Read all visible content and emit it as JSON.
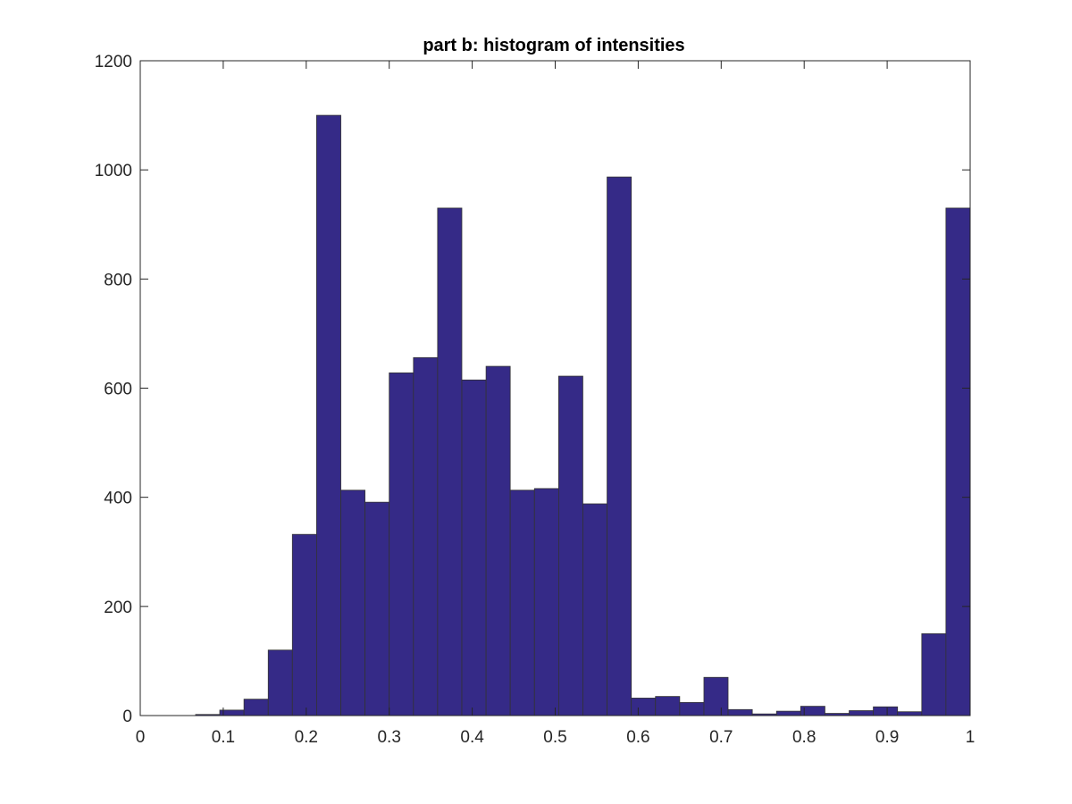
{
  "chart_data": {
    "type": "bar",
    "title": "part b: histogram of intensities",
    "xlabel": "",
    "ylabel": "",
    "xlim": [
      0,
      1
    ],
    "ylim": [
      0,
      1200
    ],
    "xticks": [
      "0",
      "0.1",
      "0.2",
      "0.3",
      "0.4",
      "0.5",
      "0.6",
      "0.7",
      "0.8",
      "0.9",
      "1"
    ],
    "yticks": [
      "0",
      "200",
      "400",
      "600",
      "800",
      "1000",
      "1200"
    ],
    "grid": false,
    "bin_edges": [
      0.0667,
      0.0958,
      0.125,
      0.1542,
      0.1833,
      0.2125,
      0.2417,
      0.2708,
      0.3,
      0.3292,
      0.3583,
      0.3875,
      0.4167,
      0.4458,
      0.475,
      0.5042,
      0.5333,
      0.5625,
      0.5917,
      0.6208,
      0.65,
      0.6792,
      0.7083,
      0.7375,
      0.7667,
      0.7958,
      0.825,
      0.8542,
      0.8833,
      0.9125,
      0.9417,
      0.9708,
      1.0
    ],
    "values": [
      2,
      10,
      30,
      120,
      332,
      1100,
      413,
      391,
      628,
      656,
      930,
      615,
      640,
      413,
      416,
      622,
      388,
      987,
      32,
      35,
      24,
      70,
      11,
      3,
      8,
      17,
      4,
      9,
      16,
      7,
      150,
      930
    ],
    "bar_color": "#352a87",
    "edge_color": "#333333"
  }
}
